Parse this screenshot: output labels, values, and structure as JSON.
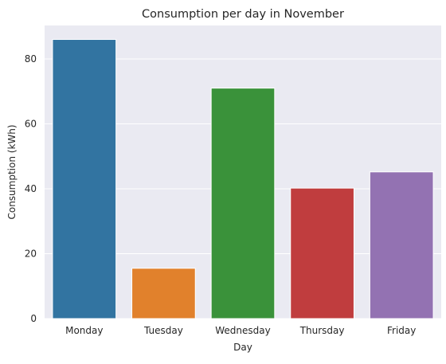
{
  "chart_data": {
    "type": "bar",
    "title": "Consumption per day in November",
    "xlabel": "Day",
    "ylabel": "Consumption (kWh)",
    "categories": [
      "Monday",
      "Tuesday",
      "Wednesday",
      "Thursday",
      "Friday"
    ],
    "values": [
      86,
      15.5,
      71,
      40.2,
      45.2
    ],
    "colors": [
      "#3274a1",
      "#e1812c",
      "#3a923a",
      "#c03d3e",
      "#9372b2"
    ],
    "ylim": [
      0,
      90.3
    ],
    "yticks": [
      0,
      20,
      40,
      60,
      80
    ],
    "grid": true,
    "legend": "none",
    "background": "#eaeaf2"
  }
}
